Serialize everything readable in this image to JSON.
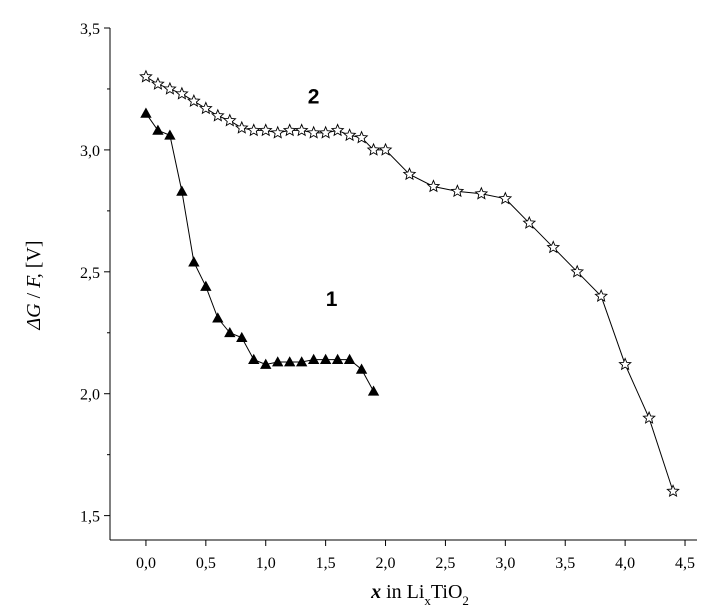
{
  "chart_data": {
    "type": "line",
    "xlabel": {
      "var": "x",
      "mid": " in Li",
      "sub1": "x",
      "mid2": "TiO",
      "sub2": "2"
    },
    "ylabel": {
      "var1": "ΔG",
      "sep": " / ",
      "var2": "F,",
      "unit": "  [V]"
    },
    "xlim": [
      -0.3,
      4.6
    ],
    "ylim": [
      1.4,
      3.5
    ],
    "xticks": [
      0.0,
      0.5,
      1.0,
      1.5,
      2.0,
      2.5,
      3.0,
      3.5,
      4.0,
      4.5
    ],
    "xtick_labels": [
      "0,0",
      "0,5",
      "1,0",
      "1,5",
      "2,0",
      "2,5",
      "3,0",
      "3,5",
      "4,0",
      "4,5"
    ],
    "yticks": [
      1.5,
      2.0,
      2.5,
      3.0,
      3.5
    ],
    "ytick_labels": [
      "1,5",
      "2,0",
      "2,5",
      "3,0",
      "3,5"
    ],
    "series": [
      {
        "name": "1",
        "marker": "triangle",
        "x": [
          0.0,
          0.1,
          0.2,
          0.3,
          0.4,
          0.5,
          0.6,
          0.7,
          0.8,
          0.9,
          1.0,
          1.1,
          1.2,
          1.3,
          1.4,
          1.5,
          1.6,
          1.7,
          1.8,
          1.9
        ],
        "y": [
          3.15,
          3.08,
          3.06,
          2.83,
          2.54,
          2.44,
          2.31,
          2.25,
          2.23,
          2.14,
          2.12,
          2.13,
          2.13,
          2.13,
          2.14,
          2.14,
          2.14,
          2.14,
          2.1,
          2.01
        ]
      },
      {
        "name": "2",
        "marker": "star",
        "x": [
          0.0,
          0.1,
          0.2,
          0.3,
          0.4,
          0.5,
          0.6,
          0.7,
          0.8,
          0.9,
          1.0,
          1.1,
          1.2,
          1.3,
          1.4,
          1.5,
          1.6,
          1.7,
          1.8,
          1.9,
          2.0,
          2.2,
          2.4,
          2.6,
          2.8,
          3.0,
          3.2,
          3.4,
          3.6,
          3.8,
          4.0,
          4.2,
          4.4
        ],
        "y": [
          3.3,
          3.27,
          3.25,
          3.23,
          3.2,
          3.17,
          3.14,
          3.12,
          3.09,
          3.08,
          3.08,
          3.07,
          3.08,
          3.08,
          3.07,
          3.07,
          3.08,
          3.06,
          3.05,
          3.0,
          3.0,
          2.9,
          2.85,
          2.83,
          2.82,
          2.8,
          2.7,
          2.6,
          2.5,
          2.4,
          2.12,
          1.9,
          1.6
        ]
      }
    ],
    "annotations": [
      {
        "text": "2",
        "x": 1.4,
        "y": 3.19
      },
      {
        "text": "1",
        "x": 1.55,
        "y": 2.36
      }
    ]
  }
}
